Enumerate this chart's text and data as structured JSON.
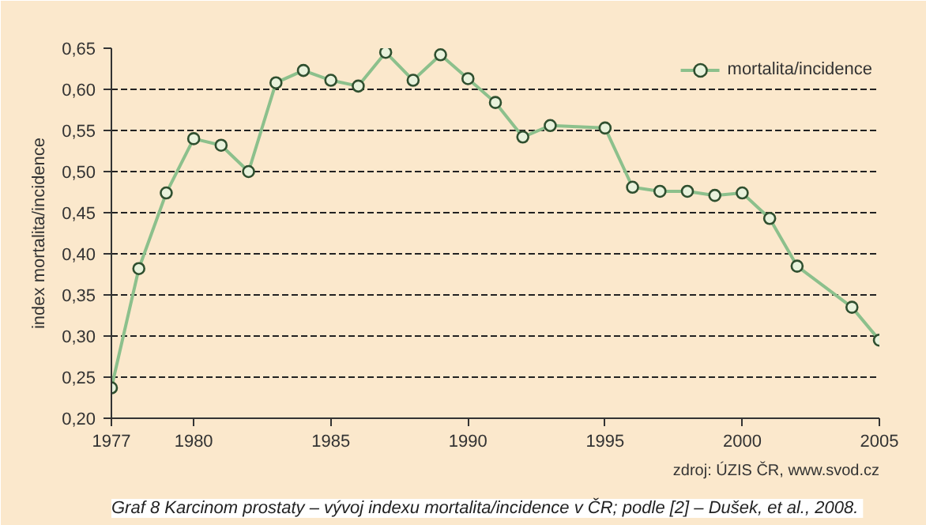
{
  "chart_data": {
    "type": "line",
    "ylabel": "index mortalita/incidence",
    "x": [
      1977,
      1978,
      1979,
      1980,
      1981,
      1982,
      1983,
      1984,
      1985,
      1986,
      1987,
      1988,
      1989,
      1990,
      1991,
      1992,
      1993,
      1995,
      1996,
      1997,
      1998,
      1999,
      2000,
      2001,
      2002,
      2004,
      2005
    ],
    "series": [
      {
        "name": "mortalita/incidence",
        "color": "#8cc08c",
        "values": [
          0.237,
          0.382,
          0.474,
          0.54,
          0.532,
          0.5,
          0.608,
          0.623,
          0.611,
          0.604,
          0.645,
          0.611,
          0.642,
          0.613,
          0.584,
          0.542,
          0.556,
          0.553,
          0.481,
          0.476,
          0.476,
          0.471,
          0.474,
          0.443,
          0.385,
          0.335,
          0.295
        ]
      }
    ],
    "xlim": [
      1977,
      2005
    ],
    "xticks": [
      1977,
      1980,
      1985,
      1990,
      1995,
      2000,
      2005
    ],
    "ylim": [
      0.2,
      0.65
    ],
    "yticks": [
      {
        "value": 0.2,
        "label": "0,20"
      },
      {
        "value": 0.25,
        "label": "0,25"
      },
      {
        "value": 0.3,
        "label": "0,30"
      },
      {
        "value": 0.35,
        "label": "0,35"
      },
      {
        "value": 0.4,
        "label": "0,40"
      },
      {
        "value": 0.45,
        "label": "0,45"
      },
      {
        "value": 0.5,
        "label": "0,50"
      },
      {
        "value": 0.55,
        "label": "0,55"
      },
      {
        "value": 0.6,
        "label": "0,60"
      },
      {
        "value": 0.65,
        "label": "0,65"
      }
    ],
    "grid": "y",
    "legend": "top right",
    "marker": "circle",
    "line_style": "solid",
    "annotations": [
      "zdroj: ÚZIS ČR, www.svod.cz",
      "Graf 8  Karcinom prostaty – vývoj indexu mortalita/incidence v ČR; podle [2] – Dušek, et al., 2008."
    ]
  }
}
